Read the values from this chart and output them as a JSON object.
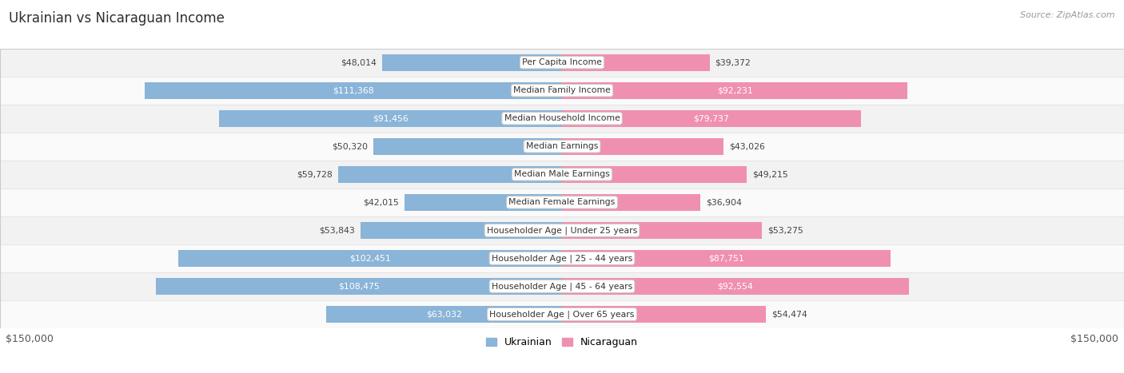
{
  "title": "Ukrainian vs Nicaraguan Income",
  "source": "Source: ZipAtlas.com",
  "categories": [
    "Per Capita Income",
    "Median Family Income",
    "Median Household Income",
    "Median Earnings",
    "Median Male Earnings",
    "Median Female Earnings",
    "Householder Age | Under 25 years",
    "Householder Age | 25 - 44 years",
    "Householder Age | 45 - 64 years",
    "Householder Age | Over 65 years"
  ],
  "ukrainian_values": [
    48014,
    111368,
    91456,
    50320,
    59728,
    42015,
    53843,
    102451,
    108475,
    63032
  ],
  "nicaraguan_values": [
    39372,
    92231,
    79737,
    43026,
    49215,
    36904,
    53275,
    87751,
    92554,
    54474
  ],
  "ukrainian_labels": [
    "$48,014",
    "$111,368",
    "$91,456",
    "$50,320",
    "$59,728",
    "$42,015",
    "$53,843",
    "$102,451",
    "$108,475",
    "$63,032"
  ],
  "nicaraguan_labels": [
    "$39,372",
    "$92,231",
    "$79,737",
    "$43,026",
    "$49,215",
    "$36,904",
    "$53,275",
    "$87,751",
    "$92,554",
    "$54,474"
  ],
  "ukrainian_color": "#8ab4d8",
  "nicaraguan_color": "#f090b0",
  "max_value": 150000,
  "axis_label": "$150,000",
  "row_colors": [
    "#f2f2f2",
    "#fafafa"
  ],
  "title_color": "#2d2d2d",
  "label_outside_color": "#444444",
  "label_inside_color": "#ffffff",
  "inside_threshold": 60000,
  "cat_box_facecolor": "#ffffff",
  "cat_box_edgecolor": "#cccccc",
  "legend_blue": "Ukrainian",
  "legend_pink": "Nicaraguan"
}
